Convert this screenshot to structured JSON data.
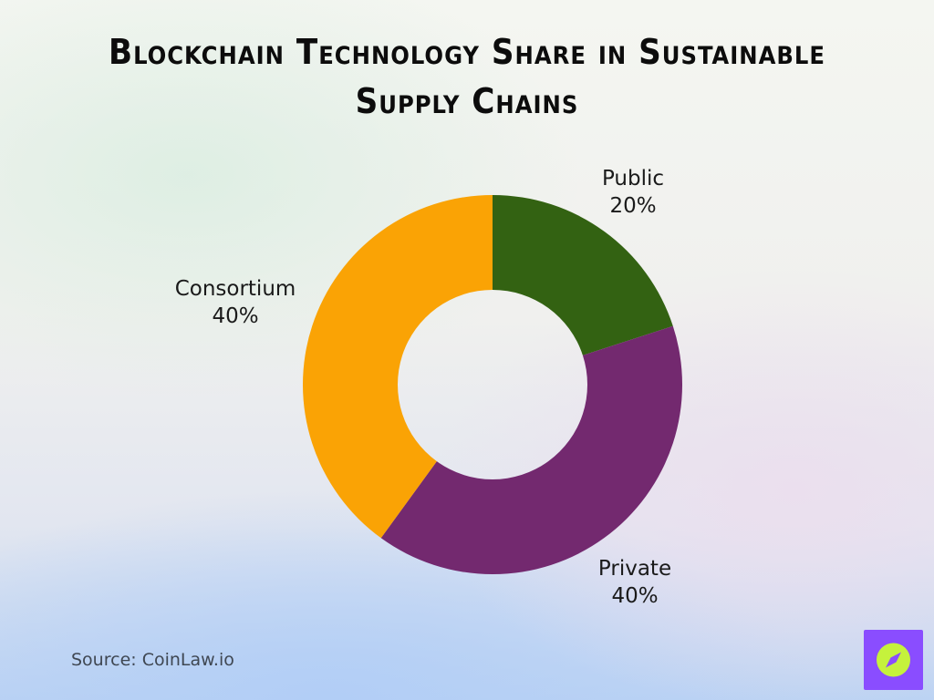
{
  "title": "Blockchain Technology Share in Sustainable Supply Chains",
  "source": "Source: CoinLaw.io",
  "colors": {
    "public": "#336212",
    "private": "#73296f",
    "consortium": "#faa305",
    "logo_bg": "#8a4dff",
    "logo_circle": "#c5f23c"
  },
  "logo_icon": "compass-icon",
  "chart_data": {
    "type": "pie",
    "donut": true,
    "title": "Blockchain Technology Share in Sustainable Supply Chains",
    "unit": "%",
    "slices": [
      {
        "label": "Public",
        "value": 20,
        "value_label": "20%",
        "color": "#336212"
      },
      {
        "label": "Private",
        "value": 40,
        "value_label": "40%",
        "color": "#73296f"
      },
      {
        "label": "Consortium",
        "value": 40,
        "value_label": "40%",
        "color": "#faa305"
      }
    ]
  }
}
